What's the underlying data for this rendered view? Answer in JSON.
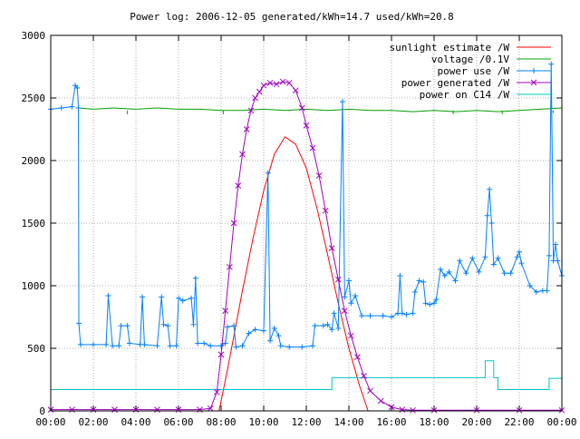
{
  "chart_data": {
    "type": "line",
    "title": "Power log: 2006-12-05 generated/kWh=14.7 used/kWh=20.8",
    "xlabel": "",
    "ylabel": "",
    "xlim": [
      0,
      24
    ],
    "ylim": [
      0,
      3000
    ],
    "x_ticks": [
      "00:00",
      "02:00",
      "04:00",
      "06:00",
      "08:00",
      "10:00",
      "12:00",
      "14:00",
      "16:00",
      "18:00",
      "20:00",
      "22:00",
      "00:00"
    ],
    "y_ticks": [
      "0",
      "500",
      "1000",
      "1500",
      "2000",
      "2500",
      "3000"
    ],
    "grid": true,
    "legend_position": "top-right",
    "series": [
      {
        "name": "sunlight estimate /W",
        "color": "#ff0000",
        "style": "line",
        "points": [
          [
            7.9,
            0
          ],
          [
            8.0,
            80
          ],
          [
            8.3,
            330
          ],
          [
            8.6,
            600
          ],
          [
            9.0,
            960
          ],
          [
            9.5,
            1380
          ],
          [
            10.0,
            1760
          ],
          [
            10.5,
            2050
          ],
          [
            11.0,
            2190
          ],
          [
            11.5,
            2130
          ],
          [
            12.0,
            1940
          ],
          [
            12.5,
            1620
          ],
          [
            13.0,
            1250
          ],
          [
            13.5,
            860
          ],
          [
            14.0,
            500
          ],
          [
            14.5,
            200
          ],
          [
            14.9,
            0
          ]
        ]
      },
      {
        "name": "voltage /0.1V",
        "color": "#00a000",
        "style": "line",
        "points": [
          [
            1.3,
            2420
          ],
          [
            2,
            2410
          ],
          [
            3,
            2420
          ],
          [
            4,
            2410
          ],
          [
            5,
            2420
          ],
          [
            6,
            2410
          ],
          [
            7,
            2410
          ],
          [
            8,
            2400
          ],
          [
            9,
            2400
          ],
          [
            10,
            2410
          ],
          [
            11,
            2400
          ],
          [
            12,
            2410
          ],
          [
            13,
            2400
          ],
          [
            14,
            2410
          ],
          [
            15,
            2400
          ],
          [
            16,
            2400
          ],
          [
            17,
            2390
          ],
          [
            18,
            2400
          ],
          [
            19,
            2390
          ],
          [
            20,
            2400
          ],
          [
            21,
            2390
          ],
          [
            22,
            2400
          ],
          [
            23,
            2410
          ],
          [
            24,
            2420
          ]
        ],
        "dips": [
          [
            3.6,
            2370
          ],
          [
            8.1,
            2370
          ],
          [
            13.7,
            2360
          ],
          [
            18.9,
            2370
          ],
          [
            21.2,
            2370
          ],
          [
            23.6,
            2380
          ]
        ]
      },
      {
        "name": "power use /W",
        "color": "#0080ff",
        "style": "linespoints",
        "points": [
          [
            0,
            2410
          ],
          [
            0.5,
            2420
          ],
          [
            1.0,
            2430
          ],
          [
            1.15,
            2600
          ],
          [
            1.25,
            2580
          ],
          [
            1.3,
            2420
          ],
          [
            1.32,
            700
          ],
          [
            1.4,
            530
          ],
          [
            2,
            530
          ],
          [
            2.6,
            530
          ],
          [
            2.7,
            920
          ],
          [
            2.9,
            520
          ],
          [
            3.2,
            520
          ],
          [
            3.3,
            680
          ],
          [
            3.6,
            680
          ],
          [
            3.7,
            540
          ],
          [
            4.2,
            530
          ],
          [
            4.3,
            910
          ],
          [
            4.4,
            530
          ],
          [
            5,
            520
          ],
          [
            5.2,
            910
          ],
          [
            5.3,
            690
          ],
          [
            5.5,
            680
          ],
          [
            5.6,
            520
          ],
          [
            5.9,
            520
          ],
          [
            6.0,
            900
          ],
          [
            6.2,
            880
          ],
          [
            6.6,
            900
          ],
          [
            6.7,
            690
          ],
          [
            6.8,
            1060
          ],
          [
            6.9,
            540
          ],
          [
            7.2,
            540
          ],
          [
            7.5,
            520
          ],
          [
            8.0,
            520
          ],
          [
            8.2,
            540
          ],
          [
            8.3,
            670
          ],
          [
            8.6,
            680
          ],
          [
            8.7,
            510
          ],
          [
            9.0,
            520
          ],
          [
            9.3,
            620
          ],
          [
            9.6,
            650
          ],
          [
            10.0,
            640
          ],
          [
            10.2,
            1900
          ],
          [
            10.3,
            560
          ],
          [
            10.5,
            660
          ],
          [
            10.7,
            600
          ],
          [
            10.8,
            520
          ],
          [
            11.2,
            510
          ],
          [
            11.8,
            510
          ],
          [
            12.3,
            520
          ],
          [
            12.4,
            680
          ],
          [
            12.8,
            680
          ],
          [
            13.0,
            690
          ],
          [
            13.2,
            650
          ],
          [
            13.3,
            780
          ],
          [
            13.5,
            660
          ],
          [
            13.7,
            2470
          ],
          [
            13.8,
            910
          ],
          [
            14.0,
            1040
          ],
          [
            14.1,
            860
          ],
          [
            14.3,
            920
          ],
          [
            14.6,
            760
          ],
          [
            15.0,
            760
          ],
          [
            15.6,
            760
          ],
          [
            16.0,
            750
          ],
          [
            16.3,
            780
          ],
          [
            16.4,
            1080
          ],
          [
            16.5,
            780
          ],
          [
            16.7,
            770
          ],
          [
            17.0,
            780
          ],
          [
            17.1,
            950
          ],
          [
            17.3,
            1040
          ],
          [
            17.5,
            1030
          ],
          [
            17.6,
            860
          ],
          [
            17.8,
            850
          ],
          [
            18.0,
            860
          ],
          [
            18.1,
            890
          ],
          [
            18.3,
            1130
          ],
          [
            18.5,
            1080
          ],
          [
            18.7,
            1110
          ],
          [
            19.0,
            1040
          ],
          [
            19.2,
            1200
          ],
          [
            19.5,
            1100
          ],
          [
            19.8,
            1220
          ],
          [
            20.1,
            1110
          ],
          [
            20.4,
            1230
          ],
          [
            20.5,
            1560
          ],
          [
            20.6,
            1770
          ],
          [
            20.7,
            1500
          ],
          [
            20.8,
            1170
          ],
          [
            21.0,
            1220
          ],
          [
            21.3,
            1100
          ],
          [
            21.6,
            1100
          ],
          [
            21.9,
            1230
          ],
          [
            22.0,
            1270
          ],
          [
            22.1,
            1180
          ],
          [
            22.5,
            1000
          ],
          [
            22.8,
            950
          ],
          [
            23.1,
            960
          ],
          [
            23.3,
            960
          ],
          [
            23.4,
            1240
          ],
          [
            23.5,
            2770
          ],
          [
            23.6,
            1200
          ],
          [
            23.7,
            1330
          ],
          [
            23.8,
            1200
          ],
          [
            24,
            1080
          ]
        ]
      },
      {
        "name": "power generated /W",
        "color": "#a000c0",
        "style": "linespoints",
        "points": [
          [
            0,
            10
          ],
          [
            1,
            10
          ],
          [
            2,
            10
          ],
          [
            3,
            10
          ],
          [
            4,
            10
          ],
          [
            5,
            10
          ],
          [
            6,
            10
          ],
          [
            7,
            10
          ],
          [
            7.5,
            20
          ],
          [
            7.8,
            150
          ],
          [
            8.0,
            450
          ],
          [
            8.2,
            800
          ],
          [
            8.4,
            1150
          ],
          [
            8.6,
            1500
          ],
          [
            8.8,
            1800
          ],
          [
            9.0,
            2050
          ],
          [
            9.2,
            2250
          ],
          [
            9.4,
            2400
          ],
          [
            9.6,
            2500
          ],
          [
            9.8,
            2550
          ],
          [
            10.0,
            2600
          ],
          [
            10.3,
            2620
          ],
          [
            10.6,
            2610
          ],
          [
            10.9,
            2630
          ],
          [
            11.2,
            2620
          ],
          [
            11.5,
            2560
          ],
          [
            11.8,
            2420
          ],
          [
            12.0,
            2280
          ],
          [
            12.3,
            2100
          ],
          [
            12.6,
            1880
          ],
          [
            12.9,
            1600
          ],
          [
            13.2,
            1300
          ],
          [
            13.5,
            1050
          ],
          [
            13.8,
            800
          ],
          [
            14.1,
            600
          ],
          [
            14.4,
            430
          ],
          [
            14.7,
            280
          ],
          [
            15.0,
            160
          ],
          [
            15.5,
            80
          ],
          [
            16.0,
            30
          ],
          [
            16.5,
            10
          ],
          [
            17,
            5
          ],
          [
            18,
            5
          ],
          [
            20,
            5
          ],
          [
            22,
            5
          ],
          [
            24,
            5
          ]
        ]
      },
      {
        "name": "power on C14 /W",
        "color": "#00c8c8",
        "style": "line",
        "points": [
          [
            0,
            170
          ],
          [
            13.0,
            170
          ],
          [
            13.2,
            170
          ],
          [
            13.2,
            265
          ],
          [
            20.4,
            265
          ],
          [
            20.4,
            400
          ],
          [
            20.8,
            400
          ],
          [
            20.8,
            265
          ],
          [
            21.0,
            265
          ],
          [
            21.0,
            170
          ],
          [
            23.4,
            170
          ],
          [
            23.4,
            260
          ],
          [
            24,
            260
          ]
        ]
      }
    ]
  }
}
